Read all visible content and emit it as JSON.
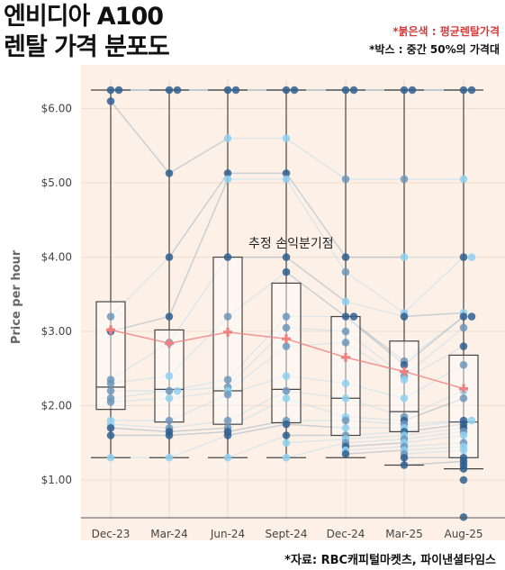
{
  "header": {
    "title_line1": "엔비디아 A100",
    "title_line2": "렌탈 가격 분포도",
    "legend_mean": "*붉은색 : 평균렌탈가격",
    "legend_box": "*박스 : 중간 50%의 가격대"
  },
  "footer": {
    "source": "*자료: RBC캐피털마켓츠, 파이낸셜타임스"
  },
  "colors": {
    "background_plot": "#fdf0e6",
    "mean": "#f08080",
    "box": "#444444",
    "dark_dot": "#2f5f8f",
    "light_dot": "#8fd0f0"
  },
  "chart_data": {
    "type": "box",
    "ylabel": "Price per hour",
    "ylim": [
      0.5,
      6.5
    ],
    "yticks": [
      1,
      2,
      3,
      4,
      5,
      6
    ],
    "ytick_labels": [
      "$1.00",
      "$2.00",
      "$3.00",
      "$4.00",
      "$5.00",
      "$6.00"
    ],
    "categories": [
      "Dec-23",
      "Mar-24",
      "Jun-24",
      "Sept-24",
      "Dec-24",
      "Mar-25",
      "Aug-25"
    ],
    "annotation": "추정 손익분기점",
    "annotation_value": 4.0,
    "boxes": [
      {
        "q1": 1.95,
        "median": 2.25,
        "q3": 3.4,
        "whisker_low": 1.3,
        "whisker_high": 6.25,
        "mean": 3.02
      },
      {
        "q1": 1.78,
        "median": 2.22,
        "q3": 3.02,
        "whisker_low": 1.3,
        "whisker_high": 6.25,
        "mean": 2.84
      },
      {
        "q1": 1.75,
        "median": 2.2,
        "q3": 4.0,
        "whisker_low": 1.3,
        "whisker_high": 6.25,
        "mean": 2.99
      },
      {
        "q1": 1.77,
        "median": 2.22,
        "q3": 3.65,
        "whisker_low": 1.3,
        "whisker_high": 6.25,
        "mean": 2.9
      },
      {
        "q1": 1.6,
        "median": 2.1,
        "q3": 3.2,
        "whisker_low": 1.3,
        "whisker_high": 6.25,
        "mean": 2.65
      },
      {
        "q1": 1.65,
        "median": 1.92,
        "q3": 2.87,
        "whisker_low": 1.2,
        "whisker_high": 6.25,
        "mean": 2.46
      },
      {
        "q1": 1.3,
        "median": 1.78,
        "q3": 2.68,
        "whisker_low": 1.15,
        "whisker_high": 6.25,
        "mean": 2.23
      }
    ],
    "points": [
      [
        [
          6.25,
          "d"
        ],
        [
          6.25,
          "d"
        ],
        [
          6.1,
          "d"
        ],
        [
          3.2,
          "m"
        ],
        [
          3.0,
          "d"
        ],
        [
          2.35,
          "m"
        ],
        [
          2.3,
          "m"
        ],
        [
          2.2,
          "m"
        ],
        [
          2.1,
          "m"
        ],
        [
          2.05,
          "m"
        ],
        [
          1.8,
          "l"
        ],
        [
          1.75,
          "l"
        ],
        [
          1.7,
          "d"
        ],
        [
          1.6,
          "d"
        ],
        [
          1.3,
          "l"
        ]
      ],
      [
        [
          6.25,
          "d"
        ],
        [
          6.25,
          "d"
        ],
        [
          5.13,
          "d"
        ],
        [
          4.0,
          "d"
        ],
        [
          3.2,
          "d"
        ],
        [
          2.85,
          "m"
        ],
        [
          2.4,
          "l"
        ],
        [
          2.2,
          "m"
        ],
        [
          2.2,
          "l"
        ],
        [
          2.1,
          "l"
        ],
        [
          1.8,
          "m"
        ],
        [
          1.7,
          "m"
        ],
        [
          1.65,
          "d"
        ],
        [
          1.6,
          "d"
        ],
        [
          1.3,
          "l"
        ]
      ],
      [
        [
          6.25,
          "d"
        ],
        [
          6.25,
          "d"
        ],
        [
          5.6,
          "l"
        ],
        [
          5.13,
          "d"
        ],
        [
          5.05,
          "l"
        ],
        [
          4.0,
          "d"
        ],
        [
          3.2,
          "m"
        ],
        [
          2.35,
          "m"
        ],
        [
          2.25,
          "m"
        ],
        [
          2.2,
          "l"
        ],
        [
          2.15,
          "m"
        ],
        [
          1.8,
          "m"
        ],
        [
          1.7,
          "m"
        ],
        [
          1.65,
          "d"
        ],
        [
          1.6,
          "d"
        ],
        [
          1.3,
          "l"
        ]
      ],
      [
        [
          6.25,
          "d"
        ],
        [
          6.25,
          "d"
        ],
        [
          5.6,
          "l"
        ],
        [
          5.13,
          "d"
        ],
        [
          5.05,
          "l"
        ],
        [
          4.0,
          "d"
        ],
        [
          3.8,
          "d"
        ],
        [
          3.2,
          "m"
        ],
        [
          3.05,
          "m"
        ],
        [
          2.8,
          "m"
        ],
        [
          2.4,
          "l"
        ],
        [
          2.2,
          "m"
        ],
        [
          2.1,
          "l"
        ],
        [
          1.8,
          "m"
        ],
        [
          1.75,
          "d"
        ],
        [
          1.6,
          "d"
        ],
        [
          1.5,
          "l"
        ],
        [
          1.3,
          "l"
        ]
      ],
      [
        [
          6.25,
          "d"
        ],
        [
          6.25,
          "d"
        ],
        [
          5.05,
          "m"
        ],
        [
          4.0,
          "d"
        ],
        [
          3.8,
          "m"
        ],
        [
          3.4,
          "l"
        ],
        [
          3.2,
          "d"
        ],
        [
          3.2,
          "d"
        ],
        [
          3.0,
          "m"
        ],
        [
          2.85,
          "m"
        ],
        [
          2.3,
          "l"
        ],
        [
          2.1,
          "l"
        ],
        [
          1.85,
          "l"
        ],
        [
          1.8,
          "m"
        ],
        [
          1.7,
          "l"
        ],
        [
          1.6,
          "m"
        ],
        [
          1.55,
          "l"
        ],
        [
          1.5,
          "m"
        ],
        [
          1.45,
          "d"
        ],
        [
          1.4,
          "l"
        ],
        [
          1.35,
          "d"
        ]
      ],
      [
        [
          6.25,
          "d"
        ],
        [
          6.25,
          "d"
        ],
        [
          5.05,
          "m"
        ],
        [
          4.0,
          "l"
        ],
        [
          3.25,
          "l"
        ],
        [
          3.2,
          "d"
        ],
        [
          2.6,
          "m"
        ],
        [
          2.55,
          "d"
        ],
        [
          2.4,
          "m"
        ],
        [
          2.35,
          "l"
        ],
        [
          2.1,
          "l"
        ],
        [
          1.85,
          "m"
        ],
        [
          1.8,
          "d"
        ],
        [
          1.75,
          "m"
        ],
        [
          1.7,
          "l"
        ],
        [
          1.65,
          "d"
        ],
        [
          1.6,
          "l"
        ],
        [
          1.55,
          "m"
        ],
        [
          1.5,
          "l"
        ],
        [
          1.45,
          "m"
        ],
        [
          1.4,
          "l"
        ],
        [
          1.35,
          "m"
        ],
        [
          1.3,
          "d"
        ],
        [
          1.2,
          "d"
        ]
      ],
      [
        [
          6.25,
          "d"
        ],
        [
          6.25,
          "d"
        ],
        [
          5.05,
          "l"
        ],
        [
          4.0,
          "d"
        ],
        [
          4.0,
          "l"
        ],
        [
          3.25,
          "l"
        ],
        [
          3.2,
          "d"
        ],
        [
          3.2,
          "d"
        ],
        [
          3.05,
          "m"
        ],
        [
          2.8,
          "d"
        ],
        [
          2.55,
          "m"
        ],
        [
          2.2,
          "l"
        ],
        [
          2.1,
          "m"
        ],
        [
          1.8,
          "d"
        ],
        [
          1.8,
          "l"
        ],
        [
          1.75,
          "d"
        ],
        [
          1.7,
          "d"
        ],
        [
          1.65,
          "m"
        ],
        [
          1.6,
          "l"
        ],
        [
          1.5,
          "m"
        ],
        [
          1.45,
          "l"
        ],
        [
          1.4,
          "l"
        ],
        [
          1.3,
          "d"
        ],
        [
          1.25,
          "d"
        ],
        [
          1.2,
          "d"
        ],
        [
          1.15,
          "d"
        ],
        [
          1.0,
          "d"
        ],
        [
          0.5,
          "d"
        ]
      ]
    ]
  }
}
